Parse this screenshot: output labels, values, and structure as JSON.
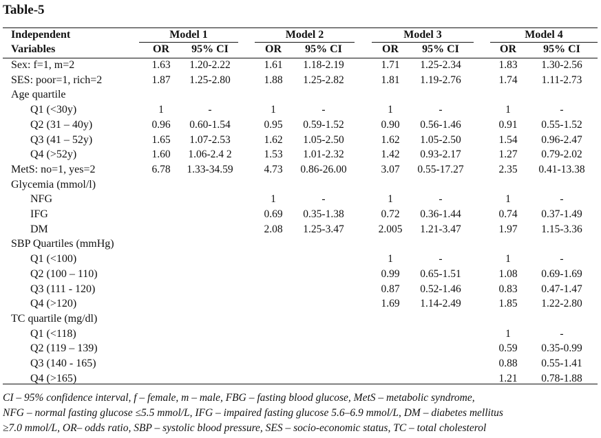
{
  "title": "Table-5",
  "header": {
    "var_label_line1": "Independent",
    "var_label_line2": "Variables",
    "models": [
      "Model 1",
      "Model 2",
      "Model 3",
      "Model 4"
    ],
    "or_label": "OR",
    "ci_label": "95% CI"
  },
  "rows": [
    {
      "label": "Sex: f=1, m=2",
      "indent": false,
      "cells": [
        [
          "1.63",
          "1.20-2.22"
        ],
        [
          "1.61",
          "1.18-2.19"
        ],
        [
          "1.71",
          "1.25-2.34"
        ],
        [
          "1.83",
          "1.30-2.56"
        ]
      ]
    },
    {
      "label": "SES: poor=1, rich=2",
      "indent": false,
      "cells": [
        [
          "1.87",
          "1.25-2.80"
        ],
        [
          "1.88",
          "1.25-2.82"
        ],
        [
          "1.81",
          "1.19-2.76"
        ],
        [
          "1.74",
          "1.11-2.73"
        ]
      ]
    },
    {
      "label": "Age quartile",
      "indent": false,
      "cells": [
        [
          "",
          ""
        ],
        [
          "",
          ""
        ],
        [
          "",
          ""
        ],
        [
          "",
          ""
        ]
      ]
    },
    {
      "label": "Q1 (<30y)",
      "indent": true,
      "cells": [
        [
          "1",
          "-"
        ],
        [
          "1",
          "-"
        ],
        [
          "1",
          "-"
        ],
        [
          "1",
          "-"
        ]
      ]
    },
    {
      "label": "Q2 (31 – 40y)",
      "indent": true,
      "cells": [
        [
          "0.96",
          "0.60-1.54"
        ],
        [
          "0.95",
          "0.59-1.52"
        ],
        [
          "0.90",
          "0.56-1.46"
        ],
        [
          "0.91",
          "0.55-1.52"
        ]
      ]
    },
    {
      "label": "Q3 (41 – 52y)",
      "indent": true,
      "cells": [
        [
          "1.65",
          "1.07-2.53"
        ],
        [
          "1.62",
          "1.05-2.50"
        ],
        [
          "1.62",
          "1.05-2.50"
        ],
        [
          "1.54",
          "0.96-2.47"
        ]
      ]
    },
    {
      "label": "Q4 (>52y)",
      "indent": true,
      "cells": [
        [
          "1.60",
          "1.06-2.4 2"
        ],
        [
          "1.53",
          "1.01-2.32"
        ],
        [
          "1.42",
          "0.93-2.17"
        ],
        [
          "1.27",
          "0.79-2.02"
        ]
      ]
    },
    {
      "label": "MetS: no=1, yes=2",
      "indent": false,
      "cells": [
        [
          "6.78",
          "1.33-34.59"
        ],
        [
          "4.73",
          "0.86-26.00"
        ],
        [
          "3.07",
          "0.55-17.27"
        ],
        [
          "2.35",
          "0.41-13.38"
        ]
      ]
    },
    {
      "label": "Glycemia (mmol/l)",
      "indent": false,
      "cells": [
        [
          "",
          ""
        ],
        [
          "",
          ""
        ],
        [
          "",
          ""
        ],
        [
          "",
          ""
        ]
      ]
    },
    {
      "label": "NFG",
      "indent": true,
      "cells": [
        [
          "",
          ""
        ],
        [
          "1",
          "-"
        ],
        [
          "1",
          "-"
        ],
        [
          "1",
          "-"
        ]
      ]
    },
    {
      "label": "IFG",
      "indent": true,
      "cells": [
        [
          "",
          ""
        ],
        [
          "0.69",
          "0.35-1.38"
        ],
        [
          "0.72",
          "0.36-1.44"
        ],
        [
          "0.74",
          "0.37-1.49"
        ]
      ]
    },
    {
      "label": "DM",
      "indent": true,
      "cells": [
        [
          "",
          ""
        ],
        [
          "2.08",
          "1.25-3.47"
        ],
        [
          "2.005",
          "1.21-3.47"
        ],
        [
          "1.97",
          "1.15-3.36"
        ]
      ]
    },
    {
      "label": "SBP Quartiles (mmHg)",
      "indent": false,
      "cells": [
        [
          "",
          ""
        ],
        [
          "",
          ""
        ],
        [
          "",
          ""
        ],
        [
          "",
          ""
        ]
      ]
    },
    {
      "label": "Q1 (<100)",
      "indent": true,
      "cells": [
        [
          "",
          ""
        ],
        [
          "",
          ""
        ],
        [
          "1",
          "-"
        ],
        [
          "1",
          "-"
        ]
      ]
    },
    {
      "label": "Q2 (100 – 110)",
      "indent": true,
      "cells": [
        [
          "",
          ""
        ],
        [
          "",
          ""
        ],
        [
          "0.99",
          "0.65-1.51"
        ],
        [
          "1.08",
          "0.69-1.69"
        ]
      ]
    },
    {
      "label": "Q3 (111 - 120)",
      "indent": true,
      "cells": [
        [
          "",
          ""
        ],
        [
          "",
          ""
        ],
        [
          "0.87",
          "0.52-1.46"
        ],
        [
          "0.83",
          "0.47-1.47"
        ]
      ]
    },
    {
      "label": "Q4 (>120)",
      "indent": true,
      "cells": [
        [
          "",
          ""
        ],
        [
          "",
          ""
        ],
        [
          "1.69",
          "1.14-2.49"
        ],
        [
          "1.85",
          "1.22-2.80"
        ]
      ]
    },
    {
      "label": "TC quartile (mg/dl)",
      "indent": false,
      "cells": [
        [
          "",
          ""
        ],
        [
          "",
          ""
        ],
        [
          "",
          ""
        ],
        [
          "",
          ""
        ]
      ]
    },
    {
      "label": "Q1 (<118)",
      "indent": true,
      "cells": [
        [
          "",
          ""
        ],
        [
          "",
          ""
        ],
        [
          "",
          ""
        ],
        [
          "1",
          "-"
        ]
      ]
    },
    {
      "label": "Q2 (119 – 139)",
      "indent": true,
      "cells": [
        [
          "",
          ""
        ],
        [
          "",
          ""
        ],
        [
          "",
          ""
        ],
        [
          "0.59",
          "0.35-0.99"
        ]
      ]
    },
    {
      "label": "Q3 (140 - 165)",
      "indent": true,
      "cells": [
        [
          "",
          ""
        ],
        [
          "",
          ""
        ],
        [
          "",
          ""
        ],
        [
          "0.88",
          "0.55-1.41"
        ]
      ]
    },
    {
      "label": "Q4 (>165)",
      "indent": true,
      "cells": [
        [
          "",
          ""
        ],
        [
          "",
          ""
        ],
        [
          "",
          ""
        ],
        [
          "1.21",
          "0.78-1.88"
        ]
      ]
    }
  ],
  "footnote": [
    "CI – 95% confidence interval, f – female, m – male, FBG – fasting blood glucose, MetS – metabolic syndrome,",
    "NFG – normal fasting glucose ≤5.5 mmol/L, IFG – impaired fasting glucose 5.6–6.9 mmol/L, DM – diabetes mellitus",
    "≥7.0 mmol/L, OR– odds ratio, SBP – systolic blood pressure, SES – socio-economic status, TC – total cholesterol"
  ]
}
